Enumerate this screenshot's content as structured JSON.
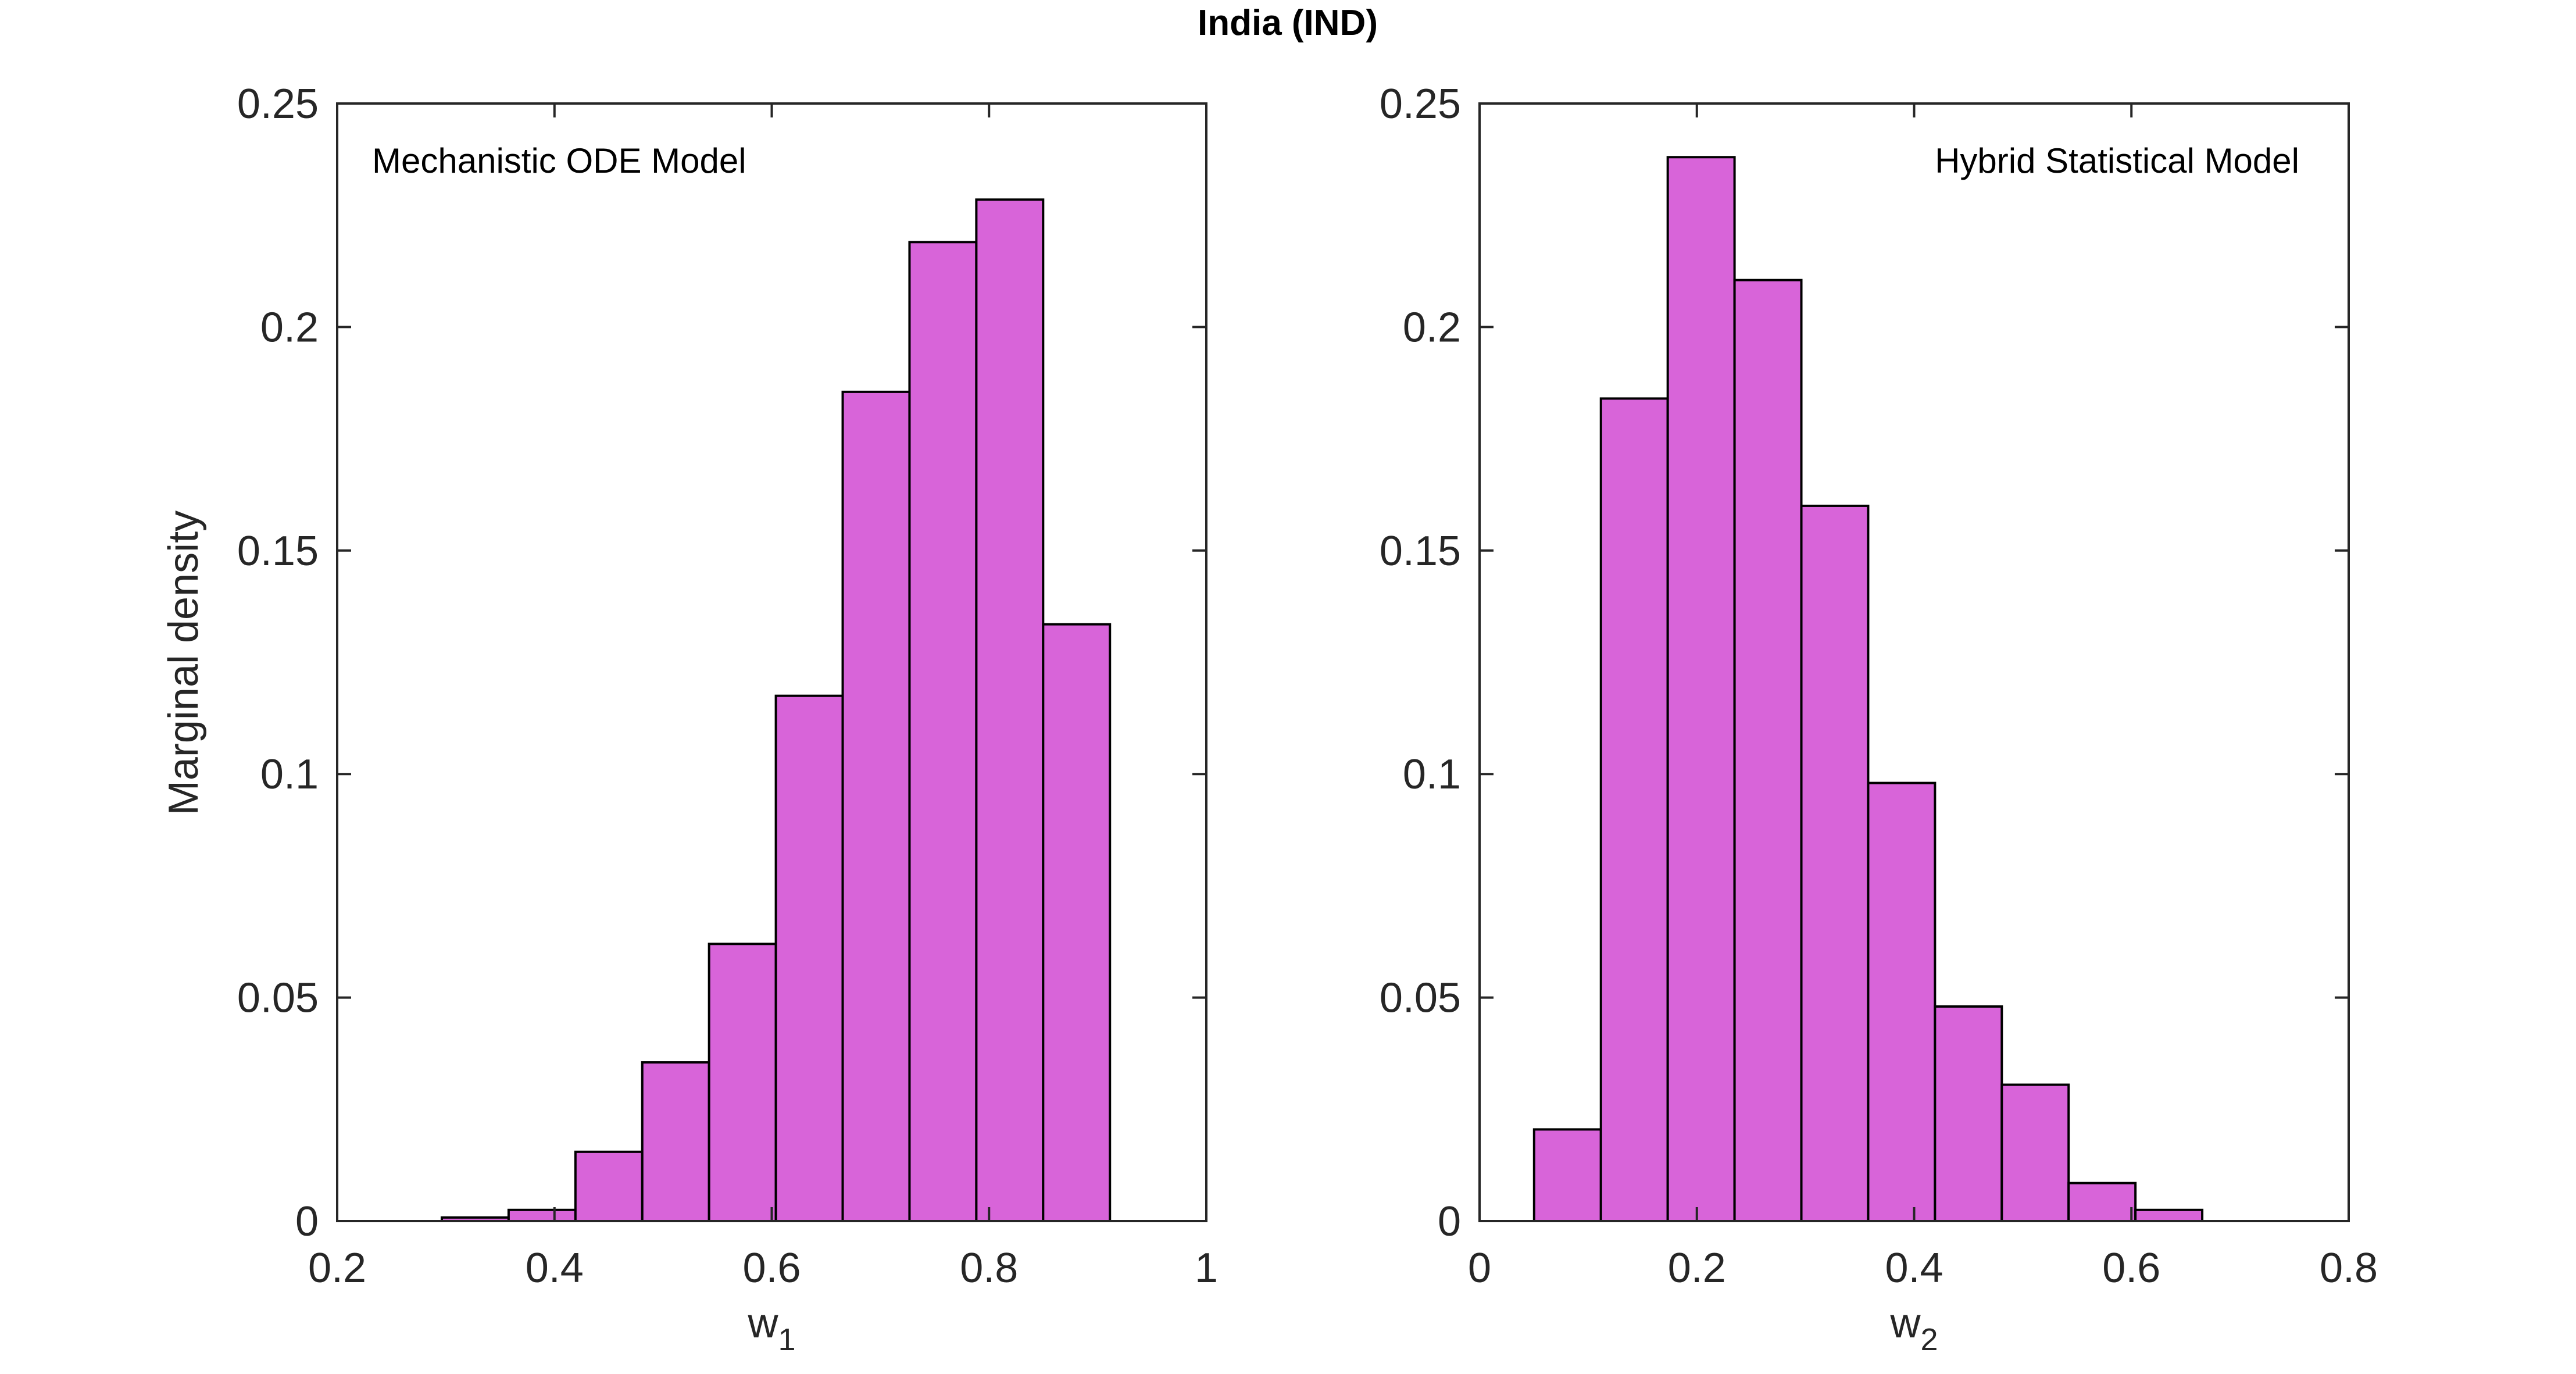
{
  "title": "India (IND)",
  "colors": {
    "bar_fill": "#D864D9",
    "bar_edge": "#000000",
    "axis": "#262626",
    "background": "#FFFFFF"
  },
  "chart_data": [
    {
      "type": "bar",
      "title": "",
      "annotation": "Mechanistic ODE Model",
      "annotation_position": "top-left",
      "xlabel": "w",
      "xlabel_sub": "1",
      "ylabel": "Marginal density",
      "xlim": [
        0.2,
        1
      ],
      "ylim": [
        0,
        0.25
      ],
      "xticks": [
        0.2,
        0.4,
        0.6,
        0.8,
        1
      ],
      "xtick_labels": [
        "0.2",
        "0.4",
        "0.6",
        "0.8",
        "1"
      ],
      "yticks": [
        0,
        0.05,
        0.1,
        0.15,
        0.2,
        0.25
      ],
      "ytick_labels": [
        "0",
        "0.05",
        "0.1",
        "0.15",
        "0.2",
        "0.25"
      ],
      "bin_width": 0.0615,
      "bin_edges": [
        0.2963,
        0.3578,
        0.4193,
        0.4808,
        0.5423,
        0.6038,
        0.6653,
        0.7268,
        0.7883,
        0.8498,
        0.9113
      ],
      "values": [
        0.0008,
        0.0025,
        0.0155,
        0.0355,
        0.062,
        0.1175,
        0.1855,
        0.219,
        0.2285,
        0.1335
      ]
    },
    {
      "type": "bar",
      "title": "",
      "annotation": "Hybrid Statistical Model",
      "annotation_position": "top-right",
      "xlabel": "w",
      "xlabel_sub": "2",
      "ylabel": "",
      "xlim": [
        0,
        0.8
      ],
      "ylim": [
        0,
        0.25
      ],
      "xticks": [
        0,
        0.2,
        0.4,
        0.6,
        0.8
      ],
      "xtick_labels": [
        "0",
        "0.2",
        "0.4",
        "0.6",
        "0.8"
      ],
      "yticks": [
        0,
        0.05,
        0.1,
        0.15,
        0.2,
        0.25
      ],
      "ytick_labels": [
        "0",
        "0.05",
        "0.1",
        "0.15",
        "0.2",
        "0.25"
      ],
      "bin_width": 0.0615,
      "bin_edges": [
        0.0502,
        0.1117,
        0.1732,
        0.2347,
        0.2962,
        0.3577,
        0.4192,
        0.4807,
        0.5422,
        0.6037,
        0.6652
      ],
      "values": [
        0.0205,
        0.184,
        0.238,
        0.2105,
        0.16,
        0.098,
        0.048,
        0.0305,
        0.0085,
        0.0025
      ]
    }
  ]
}
